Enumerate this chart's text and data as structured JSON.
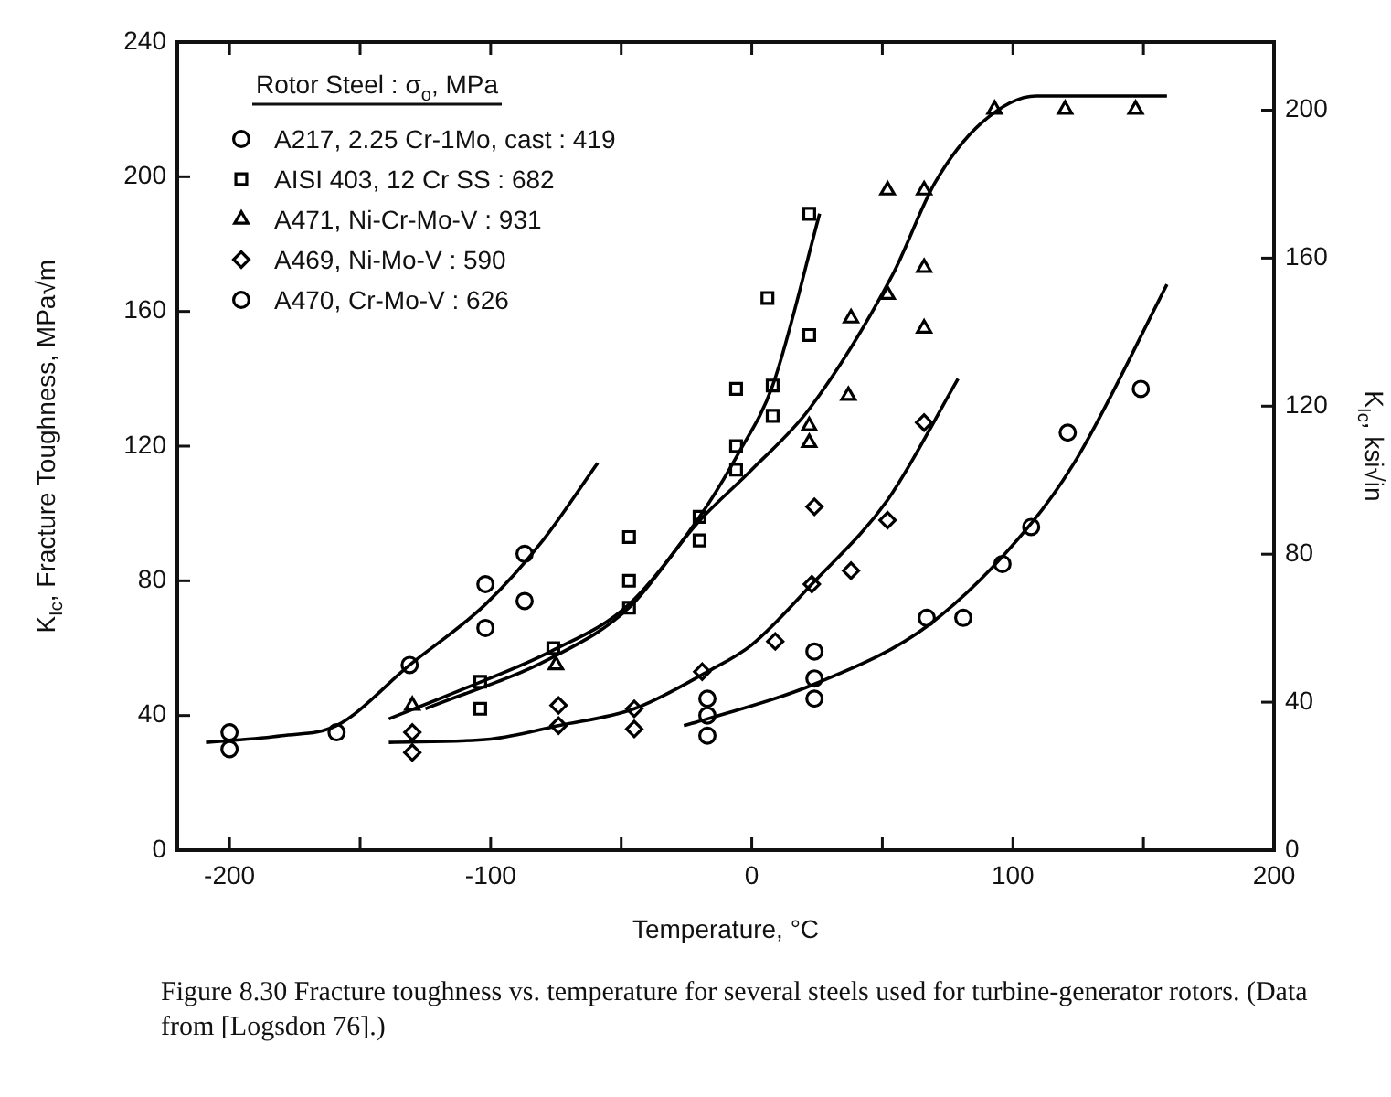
{
  "chart_data": {
    "type": "scatter",
    "xlabel": "Temperature, °C",
    "ylabel": "K$_{Ic}$, Fracture Toughness, MPa√m",
    "y2label": "K$_{Ic}$, ksi√in",
    "legend_title": "Rotor Steel : σ$_{o}$, MPa",
    "legend": "top left",
    "xlim": [
      -220,
      200
    ],
    "xticks": [
      -200,
      {
        "value": -150,
        "label": null
      },
      -100,
      {
        "value": -50,
        "label": null
      },
      0,
      {
        "value": 50,
        "label": null
      },
      100,
      {
        "value": 150,
        "label": null
      },
      200
    ],
    "ylim": [
      0,
      240
    ],
    "yticks": [
      0,
      40,
      80,
      120,
      160,
      200,
      240
    ],
    "y2lim": [
      0,
      218.4
    ],
    "y2ticks": [
      0,
      40,
      80,
      120,
      160,
      200
    ],
    "annotations": [
      "Figure 8.30  Fracture toughness vs. temperature for several steels used for turbine-generator rotors. (Data from [Logsdon 76].)"
    ],
    "series": [
      {
        "name": "A217, 2.25 Cr-1Mo, cast : 419",
        "marker": "circle",
        "color": "#000000",
        "x": [
          -200,
          -200,
          -159,
          -131,
          -102,
          -102,
          -87,
          -87
        ],
        "values": [
          35,
          30,
          35,
          55,
          79,
          66,
          88,
          74
        ]
      },
      {
        "name": "AISI 403, 12 Cr SS : 682",
        "marker": "square",
        "color": "#000000",
        "x": [
          -104,
          -104,
          -76,
          -47,
          -47,
          -47,
          -20,
          -20,
          -6,
          -6,
          -6,
          6,
          8,
          8,
          22,
          22
        ],
        "values": [
          50,
          42,
          60,
          93,
          80,
          72,
          99,
          92,
          137,
          120,
          113,
          164,
          138,
          129,
          189,
          153
        ]
      },
      {
        "name": "A471, Ni-Cr-Mo-V : 931",
        "marker": "triangle",
        "color": "#000000",
        "x": [
          -130,
          -75,
          22,
          22,
          37,
          38,
          52,
          52,
          66,
          66,
          66,
          93,
          120,
          147
        ],
        "values": [
          43,
          55,
          126,
          121,
          135,
          158,
          165,
          196,
          196,
          173,
          155,
          220,
          220,
          220
        ]
      },
      {
        "name": "A469, Ni-Mo-V : 590",
        "marker": "diamond",
        "color": "#000000",
        "x": [
          -130,
          -130,
          -74,
          -74,
          -45,
          -45,
          -19,
          9,
          23,
          24,
          38,
          52,
          66
        ],
        "values": [
          35,
          29,
          43,
          37,
          42,
          36,
          53,
          62,
          79,
          102,
          83,
          98,
          127
        ]
      },
      {
        "name": "A470, Cr-Mo-V : 626",
        "marker": "circle",
        "color": "#000000",
        "x": [
          -17,
          -17,
          -17,
          24,
          24,
          24,
          67,
          81,
          96,
          107,
          121,
          149
        ],
        "values": [
          34,
          40,
          45,
          45,
          51,
          59,
          69,
          69,
          85,
          96,
          124,
          137
        ]
      },
      {
        "type": "line",
        "marker": "none",
        "color": "#000000",
        "x": [
          -209,
          -180,
          -159,
          -131,
          -102,
          -80,
          -59
        ],
        "values": [
          32,
          34,
          37,
          55,
          73,
          92,
          115
        ]
      },
      {
        "type": "line",
        "marker": "none",
        "color": "#000000",
        "x": [
          -139,
          -110,
          -77,
          -47,
          -20,
          -5,
          8,
          26
        ],
        "values": [
          39,
          48,
          59,
          73,
          99,
          118,
          138,
          189
        ]
      },
      {
        "type": "line",
        "marker": "none",
        "color": "#000000",
        "x": [
          -125,
          -77,
          -47,
          -21,
          0,
          22,
          54,
          70,
          88,
          109,
          159
        ],
        "values": [
          42,
          57,
          72,
          97,
          113,
          131,
          171,
          198,
          216,
          224,
          224
        ]
      },
      {
        "type": "line",
        "marker": "none",
        "color": "#000000",
        "x": [
          -139,
          -100,
          -74,
          -45,
          -17,
          0,
          23,
          52,
          79
        ],
        "values": [
          32,
          33,
          37,
          42,
          53,
          61,
          79,
          104,
          140
        ]
      },
      {
        "type": "line",
        "marker": "none",
        "color": "#000000",
        "x": [
          -26,
          -17,
          23,
          68,
          107,
          125,
          159
        ],
        "values": [
          37,
          39,
          49,
          67,
          97,
          117,
          168
        ]
      }
    ]
  }
}
